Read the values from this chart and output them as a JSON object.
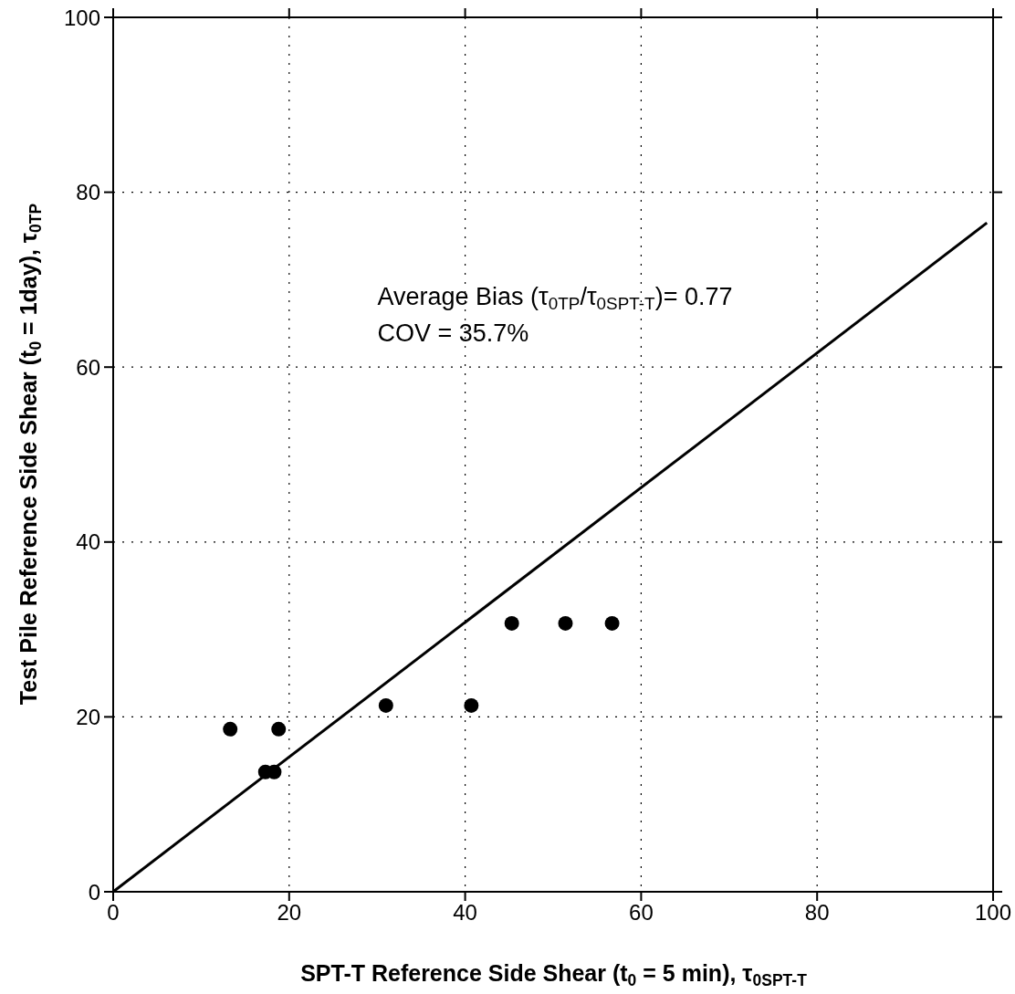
{
  "chart_data": {
    "type": "scatter",
    "xlabel": "SPT-T Reference Side Shear (t$_{0}$ = 5 min), τ$_{0SPT-T}$",
    "ylabel": "Test Pile Reference Side Shear (t$_{0}$ = 1day), τ$_{0TP}$",
    "annotations": [
      "Average Bias (τ$_{0TP}$/τ$_{0SPT-T}$)= 0.77",
      "COV = 35.7%"
    ],
    "xlim": [
      0,
      100
    ],
    "xticks": [
      0,
      20,
      40,
      60,
      80,
      100
    ],
    "ylim": [
      0,
      100
    ],
    "yticks": [
      0,
      20,
      40,
      60,
      80,
      100
    ],
    "grid": true,
    "series": [
      {
        "color": "#000000",
        "marker": "circle",
        "x": [
          13.3,
          18.8,
          17.3,
          18.3,
          31.0,
          40.7,
          45.3,
          51.4,
          56.7
        ],
        "values": [
          18.6,
          18.6,
          13.7,
          13.7,
          21.3,
          21.3,
          30.7,
          30.7,
          30.7
        ]
      },
      {
        "type": "line",
        "color": "#000000",
        "line_style": "solid",
        "x": [
          0,
          99.3
        ],
        "values": [
          0,
          76.5
        ]
      }
    ]
  }
}
